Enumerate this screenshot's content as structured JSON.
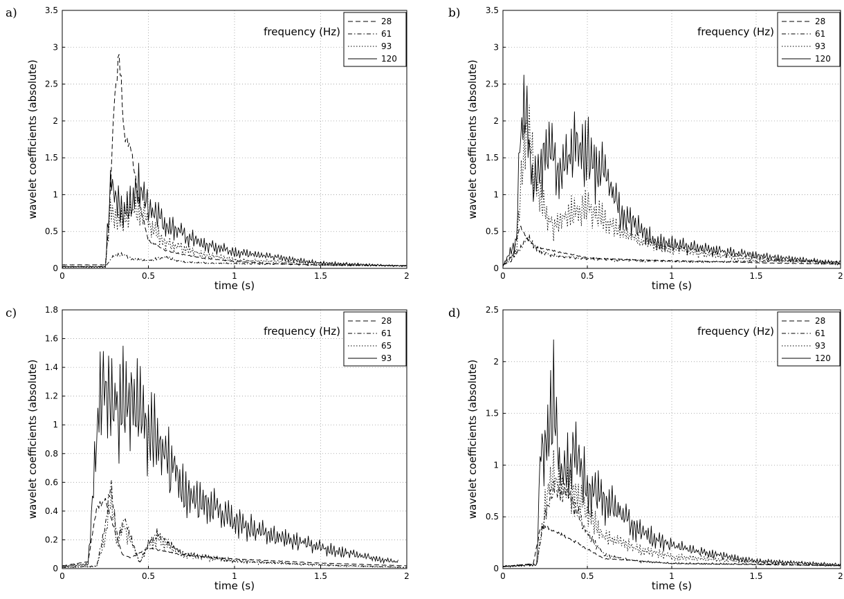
{
  "chart_data": [
    {
      "type": "line",
      "panel_label": "a)",
      "xlabel": "time (s)",
      "ylabel": "wavelet coefficients (absolute)",
      "xlim": [
        0,
        2
      ],
      "ylim": [
        0,
        3.5
      ],
      "xticks": [
        0,
        0.5,
        1,
        1.5,
        2
      ],
      "xtick_labels": [
        "0",
        "0.5",
        "1",
        "1.5",
        "2"
      ],
      "yticks": [
        0,
        0.5,
        1,
        1.5,
        2,
        2.5,
        3,
        3.5
      ],
      "ytick_labels": [
        "0",
        "0.5",
        "1",
        "1.5",
        "2",
        "2.5",
        "3",
        "3.5"
      ],
      "grid": true,
      "legend_title": "frequency (Hz)",
      "legend_position": "top-right",
      "series": [
        {
          "name": "28",
          "style": "dashed",
          "x": [
            0,
            0.25,
            0.27,
            0.3,
            0.33,
            0.36,
            0.4,
            0.45,
            0.5,
            0.6,
            0.8,
            1,
            1.2,
            1.5,
            2
          ],
          "y": [
            0.05,
            0.05,
            0.6,
            2.3,
            3.1,
            1.9,
            1.7,
            0.9,
            0.4,
            0.25,
            0.15,
            0.1,
            0.07,
            0.05,
            0.04
          ]
        },
        {
          "name": "61",
          "style": "dashdot",
          "x": [
            0,
            0.25,
            0.3,
            0.35,
            0.4,
            0.5,
            0.6,
            0.7,
            0.9,
            1.2,
            1.5,
            2
          ],
          "y": [
            0.03,
            0.03,
            0.2,
            0.22,
            0.15,
            0.12,
            0.18,
            0.1,
            0.08,
            0.07,
            0.05,
            0.04
          ]
        },
        {
          "name": "93",
          "style": "dotted",
          "x": [
            0,
            0.25,
            0.28,
            0.32,
            0.36,
            0.4,
            0.45,
            0.5,
            0.6,
            0.8,
            1,
            1.5,
            2
          ],
          "y": [
            0.02,
            0.02,
            1.1,
            0.8,
            0.9,
            1.0,
            1.1,
            0.8,
            0.45,
            0.25,
            0.15,
            0.08,
            0.04
          ]
        },
        {
          "name": "120",
          "style": "solid",
          "x": [
            0,
            0.25,
            0.28,
            0.32,
            0.36,
            0.4,
            0.45,
            0.5,
            0.6,
            0.8,
            1,
            1.5,
            2
          ],
          "y": [
            0.03,
            0.03,
            1.55,
            1.35,
            0.95,
            1.2,
            1.5,
            1.1,
            0.8,
            0.45,
            0.3,
            0.1,
            0.04
          ]
        }
      ]
    },
    {
      "type": "line",
      "panel_label": "b)",
      "xlabel": "time (s)",
      "ylabel": "wavelet coefficients (absolute)",
      "xlim": [
        0,
        2
      ],
      "ylim": [
        0,
        3.5
      ],
      "xticks": [
        0,
        0.5,
        1,
        1.5,
        2
      ],
      "xtick_labels": [
        "0",
        "0.5",
        "1",
        "1.5",
        "2"
      ],
      "yticks": [
        0,
        0.5,
        1,
        1.5,
        2,
        2.5,
        3,
        3.5
      ],
      "ytick_labels": [
        "0",
        "0.5",
        "1",
        "1.5",
        "2",
        "2.5",
        "3",
        "3.5"
      ],
      "grid": true,
      "legend_title": "frequency (Hz)",
      "legend_position": "top-right",
      "series": [
        {
          "name": "28",
          "style": "dashed",
          "x": [
            0,
            0.05,
            0.1,
            0.15,
            0.2,
            0.3,
            0.5,
            0.8,
            1.2,
            1.5,
            2
          ],
          "y": [
            0.05,
            0.1,
            0.6,
            0.4,
            0.3,
            0.25,
            0.15,
            0.12,
            0.1,
            0.08,
            0.06
          ]
        },
        {
          "name": "61",
          "style": "dashdot",
          "x": [
            0,
            0.1,
            0.15,
            0.2,
            0.3,
            0.5,
            0.8,
            1.2,
            1.6,
            2
          ],
          "y": [
            0.05,
            0.3,
            0.5,
            0.3,
            0.2,
            0.15,
            0.12,
            0.1,
            0.12,
            0.1
          ]
        },
        {
          "name": "93",
          "style": "dotted",
          "x": [
            0,
            0.08,
            0.12,
            0.15,
            0.2,
            0.3,
            0.4,
            0.5,
            0.6,
            0.7,
            0.9,
            1.2,
            1.6,
            2
          ],
          "y": [
            0.05,
            0.3,
            2.0,
            2.55,
            1.4,
            0.7,
            1.0,
            1.1,
            0.9,
            0.6,
            0.4,
            0.25,
            0.15,
            0.08
          ]
        },
        {
          "name": "120",
          "style": "solid",
          "x": [
            0,
            0.08,
            0.1,
            0.13,
            0.18,
            0.25,
            0.35,
            0.43,
            0.5,
            0.6,
            0.7,
            0.9,
            1.2,
            1.6,
            2
          ],
          "y": [
            0.05,
            0.5,
            2.25,
            3.0,
            1.4,
            2.2,
            1.8,
            2.3,
            2.1,
            1.7,
            1.0,
            0.5,
            0.35,
            0.2,
            0.1
          ]
        }
      ]
    },
    {
      "type": "line",
      "panel_label": "c)",
      "xlabel": "time (s)",
      "ylabel": "wavelet coefficients (absolute)",
      "xlim": [
        0,
        2
      ],
      "ylim": [
        0,
        1.8
      ],
      "xticks": [
        0,
        0.5,
        1,
        1.5,
        2
      ],
      "xtick_labels": [
        "0",
        "0.5",
        "1",
        "1.5",
        "2"
      ],
      "yticks": [
        0,
        0.2,
        0.4,
        0.6,
        0.8,
        1,
        1.2,
        1.4,
        1.6,
        1.8
      ],
      "ytick_labels": [
        "0",
        "0.2",
        "0.4",
        "0.6",
        "0.8",
        "1",
        "1.2",
        "1.4",
        "1.6",
        "1.8"
      ],
      "grid": true,
      "legend_title": "frequency (Hz)",
      "legend_position": "top-right",
      "series": [
        {
          "name": "28",
          "style": "dashed",
          "x": [
            0,
            0.15,
            0.2,
            0.25,
            0.3,
            0.35,
            0.4,
            0.5,
            0.7,
            1,
            1.5,
            2
          ],
          "y": [
            0.02,
            0.05,
            0.45,
            0.5,
            0.3,
            0.1,
            0.08,
            0.15,
            0.1,
            0.07,
            0.04,
            0.02
          ]
        },
        {
          "name": "61",
          "style": "dashdot",
          "x": [
            0,
            0.2,
            0.25,
            0.28,
            0.32,
            0.36,
            0.45,
            0.5,
            0.55,
            0.7,
            1,
            1.5,
            2
          ],
          "y": [
            0.01,
            0.02,
            0.35,
            0.68,
            0.25,
            0.4,
            0.05,
            0.2,
            0.28,
            0.12,
            0.06,
            0.03,
            0.01
          ]
        },
        {
          "name": "65",
          "style": "dotted",
          "x": [
            0,
            0.2,
            0.25,
            0.28,
            0.32,
            0.36,
            0.45,
            0.5,
            0.55,
            0.7,
            1,
            1.5,
            2
          ],
          "y": [
            0.01,
            0.02,
            0.3,
            0.65,
            0.22,
            0.38,
            0.05,
            0.22,
            0.27,
            0.13,
            0.07,
            0.03,
            0.01
          ]
        },
        {
          "name": "93",
          "style": "solid",
          "x": [
            0,
            0.15,
            0.2,
            0.22,
            0.3,
            0.4,
            0.5,
            0.6,
            0.7,
            0.8,
            0.9,
            1,
            1.2,
            1.5,
            1.8,
            1.95
          ],
          "y": [
            0.02,
            0.04,
            1.2,
            1.65,
            1.55,
            1.6,
            1.35,
            1.05,
            0.75,
            0.62,
            0.55,
            0.45,
            0.32,
            0.2,
            0.1,
            0.06
          ]
        }
      ]
    },
    {
      "type": "line",
      "panel_label": "d)",
      "xlabel": "time (s)",
      "ylabel": "wavelet coefficients (absolute)",
      "xlim": [
        0,
        2
      ],
      "ylim": [
        0,
        2.5
      ],
      "xticks": [
        0,
        0.5,
        1,
        1.5,
        2
      ],
      "xtick_labels": [
        "0",
        "0.5",
        "1",
        "1.5",
        "2"
      ],
      "yticks": [
        0,
        0.5,
        1,
        1.5,
        2,
        2.5
      ],
      "ytick_labels": [
        "0",
        "0.5",
        "1",
        "1.5",
        "2",
        "2.5"
      ],
      "grid": true,
      "legend_title": "frequency (Hz)",
      "legend_position": "top-right",
      "series": [
        {
          "name": "28",
          "style": "dashed",
          "x": [
            0,
            0.18,
            0.22,
            0.26,
            0.3,
            0.4,
            0.5,
            0.6,
            0.8,
            1,
            1.5,
            2
          ],
          "y": [
            0.02,
            0.05,
            0.4,
            0.42,
            0.38,
            0.3,
            0.2,
            0.1,
            0.08,
            0.05,
            0.04,
            0.03
          ]
        },
        {
          "name": "61",
          "style": "dashdot",
          "x": [
            0,
            0.2,
            0.25,
            0.3,
            0.4,
            0.5,
            0.6,
            0.8,
            1,
            1.5,
            2
          ],
          "y": [
            0.02,
            0.05,
            0.6,
            0.9,
            0.8,
            0.4,
            0.15,
            0.08,
            0.06,
            0.05,
            0.03
          ]
        },
        {
          "name": "93",
          "style": "dotted",
          "x": [
            0,
            0.2,
            0.25,
            0.3,
            0.35,
            0.4,
            0.5,
            0.6,
            0.8,
            1,
            1.5,
            2
          ],
          "y": [
            0.02,
            0.05,
            0.8,
            1.2,
            1.0,
            1.05,
            0.7,
            0.4,
            0.25,
            0.15,
            0.08,
            0.04
          ]
        },
        {
          "name": "120",
          "style": "solid",
          "x": [
            0,
            0.2,
            0.22,
            0.26,
            0.3,
            0.34,
            0.42,
            0.5,
            0.6,
            0.7,
            0.8,
            1,
            1.2,
            1.5,
            2
          ],
          "y": [
            0.03,
            0.05,
            1.5,
            1.65,
            2.25,
            1.2,
            1.5,
            1.1,
            0.9,
            0.7,
            0.5,
            0.3,
            0.2,
            0.1,
            0.05
          ]
        }
      ]
    }
  ]
}
